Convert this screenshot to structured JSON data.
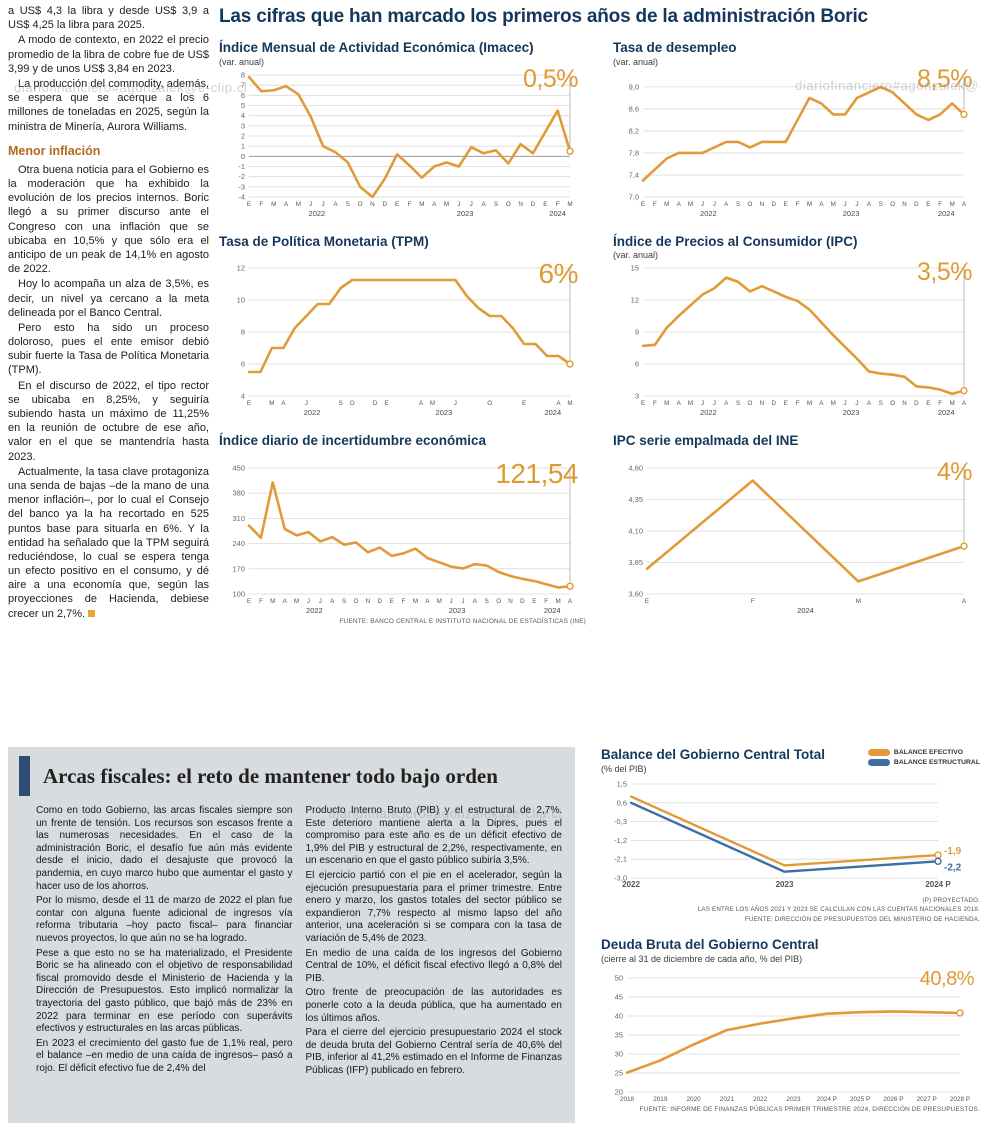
{
  "watermark": "diariofinanciero#agonzalek@e-clip.cl",
  "theme": {
    "navy": "#14375c",
    "orange": "#E29A38",
    "blue": "#3E6FA3",
    "subhead_color": "#b26a1e",
    "panel_gray": "#d9dcdf"
  },
  "left_article": {
    "paragraphs": [
      "a US$ 4,3 la libra y desde US$ 3,9 a US$ 4,25 la libra para 2025.",
      "A modo de contexto, en 2022 el precio promedio de la libra de cobre fue de US$ 3,99 y de unos US$ 3,84 en 2023.",
      "La producción del commodity, además, se espera que se acerque a los 6 millones de toneladas en 2025, según la ministra de Minería, Aurora Williams."
    ],
    "subhead": "Menor inflación",
    "paragraphs2": [
      "Otra buena noticia para el Gobierno es la moderación que ha exhibido la evolución de los precios internos. Boric llegó a su primer discurso ante el Congreso con una inflación que se ubicaba en 10,5% y que sólo era el anticipo de un peak de 14,1% en agosto de 2022.",
      "Hoy lo acompaña un alza de 3,5%, es decir, un nivel ya cercano a la meta delineada por el Banco Central.",
      "Pero esto ha sido un proceso doloroso, pues el ente emisor debió subir fuerte la Tasa de Política Monetaria (TPM).",
      "En el discurso de 2022, el tipo rector se ubicaba en 8,25%, y seguiría subiendo hasta un máximo de 11,25% en la reunión de octubre de ese año, valor en el que se mantendría hasta 2023.",
      "Actualmente, la tasa clave protagoniza una senda de bajas –de la mano de una menor inflación–, por lo cual el Consejo del banco ya la ha recortado en 525 puntos base para situarla en 6%. Y la entidad ha señalado que la TPM seguirá reduciéndose, lo cual se espera tenga un efecto positivo en el consumo, y dé aire a una economía que, según las proyecciones de Hacienda, debiese crecer un 2,7%."
    ]
  },
  "main": {
    "title": "Las cifras que han marcado los primeros años de la administración Boric"
  },
  "bottom": {
    "title": "Arcas fiscales: el reto de mantener todo bajo orden",
    "col1": [
      "Como en todo Gobierno, las arcas fiscales siempre son un frente de tensión. Los recursos son escasos frente a las numerosas necesidades. En el caso de la administración Boric, el desafío fue aún más evidente desde el inicio, dado el desajuste que provocó la pandemia, en cuyo marco hubo que aumentar el gasto y hacer uso de los ahorros.",
      "Por lo mismo, desde el 11 de marzo de 2022 el plan fue contar con alguna fuente adicional de ingresos vía reforma tributaria –hoy pacto fiscal– para financiar nuevos proyectos, lo que aún no se ha logrado.",
      "Pese a que esto no se ha materializado, el Presidente Boric se ha alineado con el objetivo de responsabilidad fiscal promovido desde el Ministerio de Hacienda y la Dirección de Presupuestos. Esto implicó normalizar la trayectoria del gasto público, que bajó más de 23% en 2022 para terminar en ese período con superávits efectivos y estructurales en las arcas públicas.",
      "En 2023 el crecimiento del gasto fue de 1,1% real, pero el balance –en medio de una caída de ingresos– pasó a rojo. El déficit efectivo fue de 2,4% del"
    ],
    "col2": [
      "Producto Interno Bruto (PIB) y el estructural de 2,7%. Este deterioro mantiene alerta a la Dipres, pues el compromiso para este año es de un déficit efectivo de 1,9% del PIB y estructural de 2,2%, respectivamente, en un escenario en que el gasto público subiría 3,5%.",
      "El ejercicio partió con el pie en el acelerador, según la ejecución presupuestaria para el primer trimestre. Entre enero y marzo, los gastos totales del sector público se expandieron 7,7% respecto al mismo lapso del año anterior, una aceleración si se compara con la tasa de variación de 5,4% de 2023.",
      "En medio de una caída de los ingresos del Gobierno Central de 10%, el déficit fiscal efectivo llegó a 0,8% del PIB.",
      "Otro frente de preocupación de las autoridades es ponerle coto a la deuda pública, que ha aumentado en los últimos años.",
      "Para el cierre del ejercicio presupuestario 2024 el stock de deuda bruta del Gobierno Central sería de 40,6% del PIB, inferior al 41,2% estimado en el Informe de Finanzas Públicas (IFP) publicado en febrero."
    ]
  },
  "chart_data": [
    {
      "type": "line",
      "title": "Índice Mensual de Actividad Económica (Imacec)",
      "subtitle": "(var. anual)",
      "highlight": "0,5%",
      "ylim": [
        -4,
        8
      ],
      "y_ticks": [
        8,
        7,
        6,
        5,
        4,
        3,
        2,
        1,
        0,
        -1,
        -2,
        -3,
        -4
      ],
      "x_labels": [
        "E",
        "F",
        "M",
        "A",
        "M",
        "J",
        "J",
        "A",
        "S",
        "O",
        "N",
        "D",
        "E",
        "F",
        "M",
        "A",
        "M",
        "J",
        "J",
        "A",
        "S",
        "O",
        "N",
        "D",
        "E",
        "F",
        "M"
      ],
      "year_labels": [
        {
          "label": "2022",
          "index": 5.5
        },
        {
          "label": "2023",
          "index": 17.5
        },
        {
          "label": "2024",
          "index": 25
        }
      ],
      "margins": {
        "l": 30,
        "r": 16,
        "t": 6,
        "b": 24
      },
      "series": [
        {
          "name": "Imacec",
          "color": "#E29A38",
          "width": 2.6,
          "end_marker": true,
          "drop_line": true,
          "values": [
            7.8,
            6.4,
            6.5,
            6.9,
            6.1,
            3.9,
            1.0,
            0.4,
            -0.6,
            -3.0,
            -4.0,
            -2.2,
            0.2,
            -0.9,
            -2.1,
            -1.0,
            -0.6,
            -1.0,
            0.9,
            0.3,
            0.6,
            -0.7,
            1.2,
            0.3,
            2.4,
            4.5,
            0.5
          ]
        }
      ]
    },
    {
      "type": "line",
      "title": "Tasa de desempleo",
      "subtitle": "(var. anual)",
      "highlight": "8,5%",
      "ylim": [
        7.0,
        9.18
      ],
      "y_ticks": [
        9.0,
        8.6,
        8.2,
        7.8,
        7.4,
        7.0
      ],
      "y_tick_labels": [
        "9,0",
        "8,6",
        "8,2",
        "7,8",
        "7,4",
        "7,0"
      ],
      "x_labels": [
        "E",
        "F",
        "M",
        "A",
        "M",
        "J",
        "J",
        "A",
        "S",
        "O",
        "N",
        "D",
        "E",
        "F",
        "M",
        "A",
        "M",
        "J",
        "J",
        "A",
        "S",
        "O",
        "N",
        "D",
        "E",
        "F",
        "M",
        "A"
      ],
      "year_labels": [
        {
          "label": "2022",
          "index": 5.5
        },
        {
          "label": "2023",
          "index": 17.5
        },
        {
          "label": "2024",
          "index": 25.5
        }
      ],
      "margins": {
        "l": 30,
        "r": 16,
        "t": 8,
        "b": 24
      },
      "series": [
        {
          "name": "Tasa de desempleo",
          "color": "#E29A38",
          "width": 2.6,
          "end_marker": true,
          "drop_line": true,
          "values": [
            7.3,
            7.5,
            7.7,
            7.8,
            7.8,
            7.8,
            7.9,
            8.0,
            8.0,
            7.9,
            8.0,
            8.0,
            8.0,
            8.4,
            8.8,
            8.7,
            8.5,
            8.5,
            8.8,
            8.9,
            9.0,
            8.9,
            8.7,
            8.5,
            8.4,
            8.5,
            8.7,
            8.5
          ]
        }
      ]
    },
    {
      "type": "line",
      "title": "Tasa de Política Monetaria (TPM)",
      "subtitle": "",
      "highlight": "6%",
      "ylim": [
        4,
        12
      ],
      "y_ticks": [
        12,
        10,
        8,
        6,
        4
      ],
      "x_labels": [
        "E",
        "",
        "M",
        "A",
        "",
        "J",
        "",
        "",
        "S",
        "O",
        "",
        "D",
        "E",
        "",
        "",
        "A",
        "M",
        "",
        "J",
        "",
        "",
        "O",
        "",
        "",
        "E",
        "",
        "",
        "A",
        "M"
      ],
      "year_labels": [
        {
          "label": "2022",
          "index": 5.5
        },
        {
          "label": "2023",
          "index": 17
        },
        {
          "label": "2024",
          "index": 26.5
        }
      ],
      "margins": {
        "l": 30,
        "r": 16,
        "t": 6,
        "b": 24
      },
      "series": [
        {
          "name": "TPM",
          "color": "#E29A38",
          "width": 2.6,
          "end_marker": true,
          "drop_line": true,
          "values": [
            5.5,
            5.5,
            7.0,
            7.0,
            8.25,
            9.0,
            9.75,
            9.75,
            10.75,
            11.25,
            11.25,
            11.25,
            11.25,
            11.25,
            11.25,
            11.25,
            11.25,
            11.25,
            11.25,
            10.25,
            9.5,
            9.0,
            9.0,
            8.25,
            7.25,
            7.25,
            6.5,
            6.5,
            6.0
          ]
        }
      ]
    },
    {
      "type": "line",
      "title": "Índice de Precios al Consumidor (IPC)",
      "subtitle": "(var. anual)",
      "highlight": "3,5%",
      "ylim": [
        3,
        15
      ],
      "y_ticks": [
        15,
        12,
        9,
        6,
        3
      ],
      "x_labels": [
        "E",
        "F",
        "M",
        "A",
        "M",
        "J",
        "J",
        "A",
        "S",
        "O",
        "N",
        "D",
        "E",
        "F",
        "M",
        "A",
        "M",
        "J",
        "J",
        "A",
        "S",
        "O",
        "N",
        "D",
        "E",
        "F",
        "M",
        "A"
      ],
      "year_labels": [
        {
          "label": "2022",
          "index": 5.5
        },
        {
          "label": "2023",
          "index": 17.5
        },
        {
          "label": "2024",
          "index": 25.5
        }
      ],
      "margins": {
        "l": 30,
        "r": 16,
        "t": 6,
        "b": 24
      },
      "series": [
        {
          "name": "IPC",
          "color": "#E29A38",
          "width": 2.6,
          "end_marker": true,
          "drop_line": true,
          "values": [
            7.7,
            7.8,
            9.4,
            10.5,
            11.5,
            12.5,
            13.1,
            14.1,
            13.7,
            12.8,
            13.3,
            12.8,
            12.3,
            11.9,
            11.1,
            9.9,
            8.7,
            7.6,
            6.5,
            5.3,
            5.1,
            5.0,
            4.8,
            3.9,
            3.8,
            3.6,
            3.2,
            3.5
          ]
        }
      ]
    },
    {
      "type": "line",
      "title": "Índice diario de incertidumbre económica",
      "subtitle": "",
      "highlight": "121,54",
      "fuente": "FUENTE: BANCO CENTRAL E INSTITUTO NACIONAL DE ESTADÍSTICAS (INE)",
      "ylim": [
        100,
        450
      ],
      "y_ticks": [
        450,
        380,
        310,
        240,
        170,
        100
      ],
      "x_labels": [
        "E",
        "F",
        "M",
        "A",
        "M",
        "J",
        "J",
        "A",
        "S",
        "O",
        "N",
        "D",
        "E",
        "F",
        "M",
        "A",
        "M",
        "J",
        "J",
        "A",
        "S",
        "O",
        "N",
        "D",
        "E",
        "F",
        "M",
        "A"
      ],
      "year_labels": [
        {
          "label": "2022",
          "index": 5.5
        },
        {
          "label": "2023",
          "index": 17.5
        },
        {
          "label": "2024",
          "index": 25.5
        }
      ],
      "margins": {
        "l": 30,
        "r": 16,
        "t": 6,
        "b": 24
      },
      "series": [
        {
          "name": "Incertidumbre económica",
          "color": "#E29A38",
          "width": 2.6,
          "end_marker": true,
          "drop_line": true,
          "values": [
            290,
            256,
            410,
            281,
            263,
            272,
            246,
            258,
            237,
            243,
            216,
            229,
            206,
            213,
            226,
            200,
            188,
            176,
            171,
            183,
            179,
            161,
            150,
            142,
            136,
            127,
            118,
            121.54
          ]
        }
      ]
    },
    {
      "type": "line",
      "title": "IPC serie empalmada del INE",
      "subtitle": "",
      "highlight": "4%",
      "ylim": [
        3.6,
        4.6
      ],
      "y_ticks": [
        4.6,
        4.35,
        4.1,
        3.85,
        3.6
      ],
      "y_tick_labels": [
        "4,60",
        "4,35",
        "4,10",
        "3,85",
        "3,60"
      ],
      "x_labels": [
        "E",
        "F",
        "M",
        "A"
      ],
      "year_labels": [
        {
          "label": "2024",
          "index": 1.5
        }
      ],
      "margins": {
        "l": 34,
        "r": 16,
        "t": 6,
        "b": 24
      },
      "series": [
        {
          "name": "IPC empalmada",
          "color": "#E29A38",
          "width": 2.6,
          "end_marker": true,
          "drop_line": true,
          "values": [
            3.8,
            4.5,
            3.7,
            3.98
          ]
        }
      ]
    },
    {
      "type": "line",
      "title": "Balance del Gobierno Central Total",
      "subtitle": "(% del PIB)",
      "notes": [
        "(P) PROYECTADO.",
        "LAS ENTRE LOS AÑOS 2021 Y 2023 SE CALCULAN  CON LAS CUENTAS NACIONALES 2018.",
        "FUENTE: DIRECCIÓN DE PRESUPUESTOS DEL MINISTERIO DE HACIENDA."
      ],
      "ylim": [
        -3.0,
        1.5
      ],
      "y_ticks": [
        1.5,
        0.6,
        -0.3,
        -1.2,
        -2.1,
        -3.0
      ],
      "y_tick_labels": [
        "1,5",
        "0,6",
        "-0,3",
        "-1,2",
        "-2,1",
        "-3,0"
      ],
      "x_labels": [
        "2022",
        "2023",
        "2024 P"
      ],
      "x_font": 8,
      "x_bold": true,
      "margins": {
        "l": 30,
        "r": 42,
        "t": 8,
        "b": 16
      },
      "series": [
        {
          "name": "BALANCE EFECTIVO",
          "color": "#E29A38",
          "width": 2.4,
          "end_marker": true,
          "end_label": "-1,9",
          "end_label_dy": -1,
          "values": [
            0.9,
            -2.4,
            -1.9
          ]
        },
        {
          "name": "BALANCE ESTRUCTURAL",
          "color": "#3E6FA3",
          "width": 2.4,
          "end_marker": true,
          "end_label": "-2,2",
          "end_label_dy": 9,
          "values": [
            0.6,
            -2.7,
            -2.2
          ]
        }
      ]
    },
    {
      "type": "line",
      "title": "Deuda Bruta del Gobierno Central",
      "subtitle": "(cierre al 31 de diciembre de cada año, % del PIB)",
      "highlight": "40,8%",
      "fuente": "FUENTE: INFORME DE FINANZAS PÚBLICAS PRIMER TRIMESTRE 2024, DIRECCIÓN DE PRESUPUESTOS.",
      "ylim": [
        20,
        50
      ],
      "y_ticks": [
        50,
        45,
        40,
        35,
        30,
        25,
        20
      ],
      "x_labels": [
        "2018",
        "2019",
        "2020",
        "2021",
        "2022",
        "2023",
        "2024 P",
        "2025 P",
        "2026 P",
        "2027 P",
        "2028 P"
      ],
      "x_font": 6.4,
      "margins": {
        "l": 26,
        "r": 20,
        "t": 12,
        "b": 14
      },
      "series": [
        {
          "name": "Deuda bruta",
          "color": "#E29A38",
          "width": 2.6,
          "end_marker": true,
          "values": [
            25.1,
            28.3,
            32.5,
            36.3,
            38.0,
            39.4,
            40.6,
            41.0,
            41.2,
            41.0,
            40.8
          ]
        }
      ]
    }
  ]
}
